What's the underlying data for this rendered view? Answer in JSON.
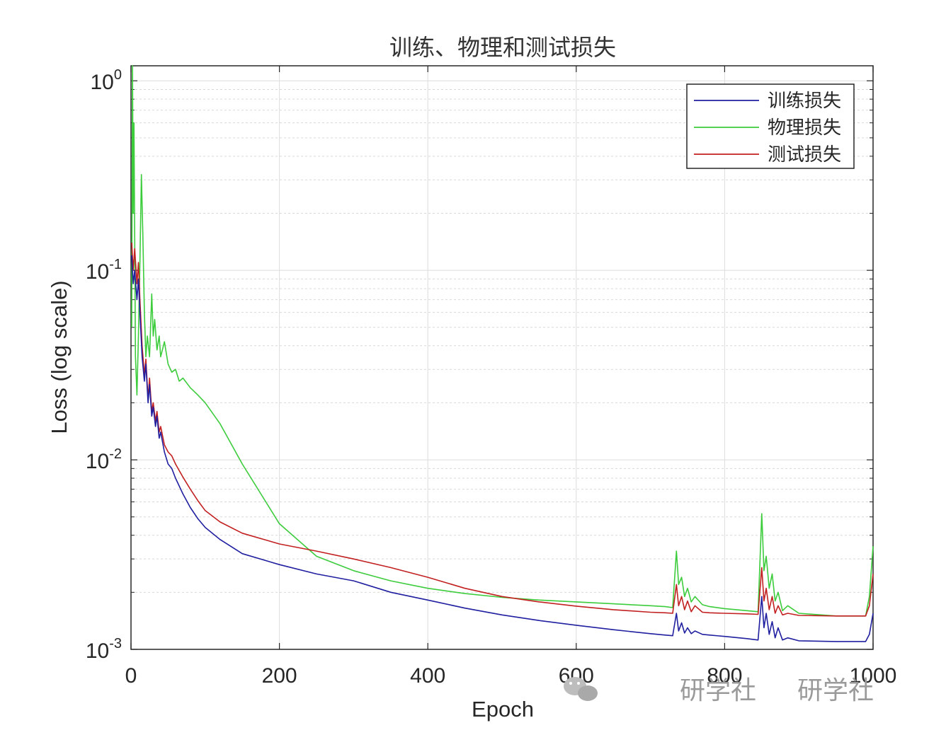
{
  "chart_data": {
    "type": "line",
    "title": "训练、物理和测试损失",
    "xlabel": "Epoch",
    "ylabel": "Loss (log scale)",
    "xlim": [
      0,
      1000
    ],
    "ylim": [
      0.001,
      1.2
    ],
    "yscale": "log",
    "grid": true,
    "legend_position": "top-right",
    "x_ticks": [
      "0",
      "200",
      "400",
      "600",
      "800",
      "1000"
    ],
    "y_ticks": [
      {
        "base": "10",
        "exp": "0"
      },
      {
        "base": "10",
        "exp": "-1"
      },
      {
        "base": "10",
        "exp": "-2"
      },
      {
        "base": "10",
        "exp": "-3"
      }
    ],
    "series": [
      {
        "name": "训练损失",
        "color": "#1f1fa0",
        "x": [
          1,
          3,
          5,
          8,
          10,
          12,
          15,
          18,
          20,
          23,
          25,
          28,
          30,
          33,
          35,
          38,
          40,
          45,
          50,
          55,
          60,
          70,
          80,
          90,
          100,
          120,
          150,
          200,
          250,
          300,
          350,
          400,
          450,
          500,
          550,
          600,
          650,
          700,
          720,
          730,
          735,
          738,
          742,
          746,
          750,
          755,
          760,
          770,
          780,
          800,
          830,
          845,
          850,
          853,
          856,
          860,
          864,
          868,
          872,
          878,
          885,
          900,
          950,
          990,
          995,
          1000
        ],
        "y": [
          0.12,
          0.085,
          0.1,
          0.07,
          0.09,
          0.06,
          0.035,
          0.026,
          0.032,
          0.02,
          0.025,
          0.017,
          0.019,
          0.015,
          0.017,
          0.013,
          0.014,
          0.011,
          0.0095,
          0.009,
          0.008,
          0.0066,
          0.0056,
          0.0049,
          0.0044,
          0.0038,
          0.0032,
          0.0028,
          0.0025,
          0.0023,
          0.002,
          0.00182,
          0.00165,
          0.00152,
          0.00142,
          0.00134,
          0.00127,
          0.00121,
          0.00119,
          0.00118,
          0.00155,
          0.00125,
          0.00138,
          0.00122,
          0.0013,
          0.00121,
          0.00125,
          0.0012,
          0.00119,
          0.00117,
          0.00114,
          0.00112,
          0.0019,
          0.0013,
          0.00155,
          0.0012,
          0.0014,
          0.00115,
          0.0013,
          0.00112,
          0.00115,
          0.00111,
          0.0011,
          0.0011,
          0.0012,
          0.00155
        ]
      },
      {
        "name": "物理损失",
        "color": "#3ccc3c",
        "x": [
          1,
          2,
          3,
          4,
          6,
          8,
          10,
          12,
          14,
          16,
          18,
          20,
          22,
          25,
          28,
          30,
          32,
          35,
          38,
          40,
          45,
          50,
          55,
          60,
          65,
          70,
          80,
          90,
          100,
          120,
          150,
          200,
          250,
          300,
          350,
          400,
          450,
          500,
          550,
          600,
          650,
          700,
          720,
          730,
          735,
          738,
          742,
          746,
          750,
          755,
          760,
          770,
          780,
          800,
          830,
          845,
          850,
          853,
          856,
          860,
          864,
          868,
          872,
          878,
          885,
          900,
          950,
          990,
          995,
          1000
        ],
        "y": [
          0.05,
          1.2,
          0.2,
          0.6,
          0.035,
          0.022,
          0.045,
          0.11,
          0.32,
          0.15,
          0.06,
          0.035,
          0.045,
          0.035,
          0.075,
          0.045,
          0.055,
          0.038,
          0.045,
          0.035,
          0.042,
          0.032,
          0.029,
          0.03,
          0.026,
          0.027,
          0.024,
          0.022,
          0.02,
          0.0155,
          0.0095,
          0.0046,
          0.0031,
          0.0026,
          0.0023,
          0.0021,
          0.00197,
          0.00188,
          0.00182,
          0.00178,
          0.00174,
          0.0017,
          0.00168,
          0.00166,
          0.0033,
          0.0022,
          0.0024,
          0.0019,
          0.0021,
          0.00178,
          0.0019,
          0.00172,
          0.00168,
          0.00164,
          0.0016,
          0.00158,
          0.0052,
          0.0026,
          0.0031,
          0.0021,
          0.0025,
          0.0018,
          0.002,
          0.0016,
          0.0017,
          0.00155,
          0.0015,
          0.0015,
          0.0019,
          0.0035
        ]
      },
      {
        "name": "测试损失",
        "color": "#c22020",
        "x": [
          1,
          3,
          5,
          8,
          10,
          12,
          15,
          18,
          20,
          23,
          25,
          28,
          30,
          33,
          35,
          38,
          40,
          45,
          50,
          55,
          60,
          70,
          80,
          90,
          100,
          120,
          150,
          200,
          250,
          300,
          350,
          400,
          450,
          500,
          550,
          600,
          650,
          700,
          720,
          730,
          735,
          738,
          742,
          746,
          750,
          755,
          760,
          770,
          780,
          800,
          830,
          845,
          850,
          853,
          856,
          860,
          864,
          868,
          872,
          878,
          885,
          900,
          950,
          990,
          995,
          1000
        ],
        "y": [
          0.14,
          0.1,
          0.13,
          0.085,
          0.11,
          0.07,
          0.04,
          0.028,
          0.034,
          0.021,
          0.027,
          0.018,
          0.02,
          0.016,
          0.018,
          0.014,
          0.015,
          0.012,
          0.011,
          0.0105,
          0.0095,
          0.0081,
          0.007,
          0.0061,
          0.0054,
          0.0047,
          0.0041,
          0.0036,
          0.0033,
          0.003,
          0.0027,
          0.0024,
          0.0021,
          0.0019,
          0.00178,
          0.00169,
          0.00162,
          0.00157,
          0.00156,
          0.00155,
          0.0022,
          0.0017,
          0.0019,
          0.00162,
          0.0018,
          0.00158,
          0.0017,
          0.00157,
          0.00156,
          0.00155,
          0.00154,
          0.00153,
          0.0027,
          0.0018,
          0.0021,
          0.00162,
          0.0019,
          0.00155,
          0.0017,
          0.00152,
          0.00155,
          0.00151,
          0.0015,
          0.0015,
          0.0017,
          0.0025
        ]
      }
    ]
  },
  "watermark": {
    "text_left": "研学社",
    "text_right": "研学社"
  }
}
